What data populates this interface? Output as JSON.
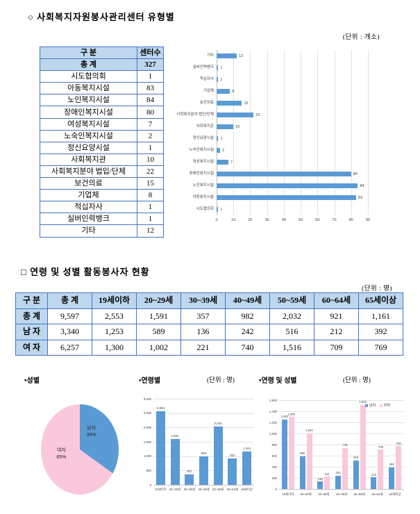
{
  "colors": {
    "bar_blue": "#5B9BD5",
    "pink": "#FAC8DC",
    "table_border": "#4472C4",
    "table_header_bg": "#BDD7EE"
  },
  "section1": {
    "title": "○ 사회복지자원봉사관리센터 유형별",
    "unit": "(단위 : 개소)"
  },
  "table1": {
    "headers": [
      "구    분",
      "센터수"
    ],
    "rows": [
      [
        "총    계",
        "327"
      ],
      [
        "시도협의회",
        "1"
      ],
      [
        "아동복지시설",
        "83"
      ],
      [
        "노인복지시설",
        "84"
      ],
      [
        "장애인복지시설",
        "80"
      ],
      [
        "여성복지시설",
        "7"
      ],
      [
        "노숙인복지시설",
        "2"
      ],
      [
        "정신요양시설",
        "1"
      ],
      [
        "사회복지관",
        "10"
      ],
      [
        "사회복지분야 법입/단체",
        "22"
      ],
      [
        "보건의료",
        "15"
      ],
      [
        "기업체",
        "8"
      ],
      [
        "적십자사",
        "1"
      ],
      [
        "실버인력뱅크",
        "1"
      ],
      [
        "기타",
        "12"
      ]
    ]
  },
  "section2": {
    "title": "□ 연령 및 성별 활동봉사자 현황",
    "unit": "(단위 : 명)"
  },
  "table2": {
    "headers": [
      "구 분",
      "총 계",
      "19세이하",
      "20~29세",
      "30~39세",
      "40~49세",
      "50~59세",
      "60~64세",
      "65세이상"
    ],
    "rows": [
      [
        "총 계",
        "9,597",
        "2,553",
        "1,591",
        "357",
        "982",
        "2,032",
        "921",
        "1,161"
      ],
      [
        "남 자",
        "3,340",
        "1,253",
        "589",
        "136",
        "242",
        "516",
        "212",
        "392"
      ],
      [
        "여 자",
        "6,257",
        "1,300",
        "1,002",
        "221",
        "740",
        "1,516",
        "709",
        "769"
      ]
    ]
  },
  "section3": {
    "pie_title": "•성별",
    "age_title": "•연령별",
    "age_unit": "(단위 : 명)",
    "agegender_title": "•연령 및 성별",
    "agegender_unit": "(단위 : 명)"
  },
  "chart_data": [
    {
      "id": "center-type-hbar",
      "type": "bar",
      "orientation": "horizontal",
      "title": "사회복지자원봉사관리센터 유형별",
      "categories_top_to_bottom": [
        "기타",
        "실버인력뱅크",
        "적십자사",
        "기업체",
        "보건의료",
        "사회복지분야 법인/단체",
        "사회복지관",
        "정신요양시설",
        "노숙인복지시설",
        "여성복지시설",
        "장애인복지시설",
        "노인복지시설",
        "아동복지시설",
        "시도협의회"
      ],
      "values": [
        12,
        1,
        1,
        8,
        15,
        22,
        10,
        1,
        2,
        7,
        80,
        84,
        83,
        1
      ],
      "data_labels": [
        "12",
        "1",
        "1",
        "8",
        "15",
        "22",
        "10",
        "1",
        "2",
        "7",
        "80",
        "84",
        "83",
        "1"
      ],
      "xlim": [
        0,
        90
      ],
      "xticks": [
        "0",
        "10",
        "20",
        "30",
        "40",
        "50",
        "60",
        "70",
        "80",
        "90"
      ],
      "grid": true,
      "legend": false,
      "bar_color": "#5B9BD5"
    },
    {
      "id": "gender-pie",
      "type": "pie",
      "title": "성별",
      "labels": [
        "남자",
        "여자"
      ],
      "values_pct": [
        35,
        65
      ],
      "pct_labels": [
        "35%",
        "65%"
      ],
      "colors": [
        "#5B9BD5",
        "#FAC8DC"
      ]
    },
    {
      "id": "age-bar",
      "type": "bar",
      "title": "연령별",
      "unit": "(단위 : 명)",
      "categories": [
        "19세이하",
        "20~29세",
        "30~39세",
        "40~49세",
        "50~59세",
        "60~64세",
        "65세이상"
      ],
      "values": [
        2553,
        1591,
        357,
        982,
        2032,
        921,
        1161
      ],
      "data_labels": [
        "2,553",
        "1,591",
        "357",
        "982",
        "2,032",
        "921",
        "1,161"
      ],
      "ylim": [
        0,
        3000
      ],
      "yticks": [
        "0",
        "500",
        "1,000",
        "1,500",
        "2,000",
        "2,500",
        "3,000"
      ],
      "grid": true,
      "bar_color": "#5B9BD5"
    },
    {
      "id": "age-gender-bar",
      "type": "bar",
      "grouped": true,
      "title": "연령 및 성별",
      "unit": "(단위 : 명)",
      "categories": [
        "19세이하",
        "20~29세",
        "30~39세",
        "40~49세",
        "50~59세",
        "60~64세",
        "65세이상"
      ],
      "series": [
        {
          "name": "남자",
          "color": "#5B9BD5",
          "values": [
            1253,
            589,
            136,
            242,
            516,
            212,
            392
          ],
          "labels": [
            "1,253",
            "589",
            "136",
            "242",
            "516",
            "212",
            "392"
          ]
        },
        {
          "name": "여자",
          "color": "#FAC8DC",
          "values": [
            1300,
            1002,
            221,
            740,
            1516,
            709,
            769
          ],
          "labels": [
            "1,300",
            "1,002",
            "221",
            "740",
            "1,516",
            "709",
            "769"
          ]
        }
      ],
      "ylim": [
        0,
        1600
      ],
      "yticks": [
        "0",
        "200",
        "400",
        "600",
        "800",
        "1,000",
        "1,200",
        "1,400",
        "1,600"
      ],
      "grid": true,
      "legend": [
        "남자",
        "여자"
      ],
      "legend_position": "top-right"
    }
  ]
}
